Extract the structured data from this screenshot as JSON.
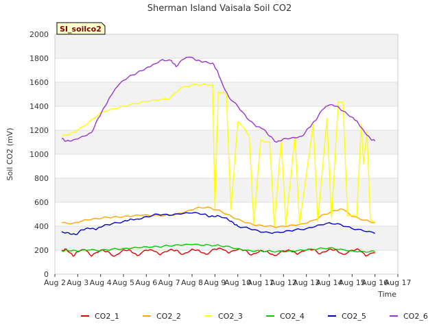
{
  "chart_data": {
    "type": "line",
    "title": "Sherman Island Vaisala Soil CO2",
    "xlabel": "Time",
    "ylabel": "Soil CO2 (mV)",
    "site_label": "SI_soilco2",
    "x_ticks": [
      "Aug 2",
      "Aug 3",
      "Aug 4",
      "Aug 5",
      "Aug 6",
      "Aug 7",
      "Aug 8",
      "Aug 9",
      "Aug 10",
      "Aug 11",
      "Aug 12",
      "Aug 13",
      "Aug 14",
      "Aug 15",
      "Aug 16",
      "Aug 17"
    ],
    "xlim": [
      2,
      17
    ],
    "ylim": [
      0,
      2000
    ],
    "y_ticks": [
      0,
      200,
      400,
      600,
      800,
      1000,
      1200,
      1400,
      1600,
      1800,
      2000
    ],
    "grid": true,
    "legend_position": "bottom",
    "series": [
      {
        "name": "CO2_1",
        "color": "#dd0000",
        "points": [
          [
            2.3,
            200
          ],
          [
            2.5,
            210
          ],
          [
            2.8,
            150
          ],
          [
            3.0,
            185
          ],
          [
            3.3,
            205
          ],
          [
            3.6,
            150
          ],
          [
            4.0,
            200
          ],
          [
            4.3,
            190
          ],
          [
            4.6,
            150
          ],
          [
            5.0,
            205
          ],
          [
            5.3,
            200
          ],
          [
            5.6,
            155
          ],
          [
            6.0,
            200
          ],
          [
            6.3,
            195
          ],
          [
            6.6,
            160
          ],
          [
            7.0,
            200
          ],
          [
            7.3,
            200
          ],
          [
            7.6,
            165
          ],
          [
            8.0,
            210
          ],
          [
            8.3,
            200
          ],
          [
            8.6,
            165
          ],
          [
            9.0,
            210
          ],
          [
            9.3,
            210
          ],
          [
            9.6,
            175
          ],
          [
            10.0,
            205
          ],
          [
            10.3,
            200
          ],
          [
            10.6,
            160
          ],
          [
            11.0,
            200
          ],
          [
            11.3,
            190
          ],
          [
            11.6,
            155
          ],
          [
            12.0,
            195
          ],
          [
            12.3,
            195
          ],
          [
            12.6,
            165
          ],
          [
            13.0,
            200
          ],
          [
            13.3,
            205
          ],
          [
            13.6,
            170
          ],
          [
            14.0,
            210
          ],
          [
            14.3,
            205
          ],
          [
            14.6,
            165
          ],
          [
            15.0,
            200
          ],
          [
            15.3,
            205
          ],
          [
            15.6,
            150
          ],
          [
            16.0,
            180
          ]
        ]
      },
      {
        "name": "CO2_2",
        "color": "#ffa500",
        "points": [
          [
            2.3,
            430
          ],
          [
            2.8,
            425
          ],
          [
            3.3,
            455
          ],
          [
            3.8,
            465
          ],
          [
            4.3,
            475
          ],
          [
            4.8,
            475
          ],
          [
            5.3,
            480
          ],
          [
            5.8,
            490
          ],
          [
            6.3,
            485
          ],
          [
            6.8,
            490
          ],
          [
            7.3,
            500
          ],
          [
            7.8,
            530
          ],
          [
            8.3,
            560
          ],
          [
            8.8,
            555
          ],
          [
            9.3,
            520
          ],
          [
            9.8,
            470
          ],
          [
            10.3,
            430
          ],
          [
            10.8,
            405
          ],
          [
            11.3,
            400
          ],
          [
            11.8,
            395
          ],
          [
            12.3,
            410
          ],
          [
            12.8,
            420
          ],
          [
            13.3,
            450
          ],
          [
            13.8,
            500
          ],
          [
            14.3,
            530
          ],
          [
            14.6,
            540
          ],
          [
            15.0,
            480
          ],
          [
            15.5,
            450
          ],
          [
            16.0,
            430
          ]
        ]
      },
      {
        "name": "CO2_3",
        "color": "#ffff00",
        "points": [
          [
            2.3,
            1150
          ],
          [
            2.6,
            1160
          ],
          [
            3.0,
            1200
          ],
          [
            3.5,
            1270
          ],
          [
            4.0,
            1350
          ],
          [
            4.5,
            1380
          ],
          [
            5.0,
            1400
          ],
          [
            5.5,
            1420
          ],
          [
            6.0,
            1440
          ],
          [
            6.5,
            1450
          ],
          [
            7.0,
            1460
          ],
          [
            7.5,
            1550
          ],
          [
            8.0,
            1580
          ],
          [
            8.5,
            1585
          ],
          [
            8.9,
            1580
          ],
          [
            9.0,
            550
          ],
          [
            9.15,
            1520
          ],
          [
            9.5,
            1500
          ],
          [
            9.7,
            540
          ],
          [
            10.0,
            1270
          ],
          [
            10.2,
            1230
          ],
          [
            10.5,
            1160
          ],
          [
            10.7,
            420
          ],
          [
            11.0,
            1120
          ],
          [
            11.4,
            1100
          ],
          [
            11.6,
            400
          ],
          [
            11.9,
            1120
          ],
          [
            12.1,
            410
          ],
          [
            12.5,
            1150
          ],
          [
            12.7,
            420
          ],
          [
            13.3,
            1250
          ],
          [
            13.5,
            440
          ],
          [
            13.9,
            1300
          ],
          [
            14.1,
            470
          ],
          [
            14.4,
            1440
          ],
          [
            14.6,
            1430
          ],
          [
            14.8,
            490
          ],
          [
            15.2,
            480
          ],
          [
            15.4,
            1250
          ],
          [
            15.5,
            920
          ],
          [
            15.65,
            1190
          ],
          [
            15.8,
            450
          ],
          [
            16.0,
            440
          ]
        ]
      },
      {
        "name": "CO2_4",
        "color": "#00cc00",
        "points": [
          [
            2.3,
            195
          ],
          [
            2.6,
            195
          ],
          [
            3.0,
            190
          ],
          [
            3.5,
            200
          ],
          [
            4.0,
            195
          ],
          [
            4.5,
            210
          ],
          [
            5.0,
            215
          ],
          [
            5.5,
            225
          ],
          [
            6.0,
            230
          ],
          [
            6.5,
            230
          ],
          [
            7.0,
            235
          ],
          [
            7.5,
            240
          ],
          [
            8.0,
            245
          ],
          [
            8.5,
            240
          ],
          [
            9.0,
            240
          ],
          [
            9.5,
            235
          ],
          [
            10.0,
            215
          ],
          [
            10.5,
            200
          ],
          [
            11.0,
            195
          ],
          [
            11.5,
            190
          ],
          [
            12.0,
            185
          ],
          [
            12.5,
            190
          ],
          [
            13.0,
            200
          ],
          [
            13.5,
            210
          ],
          [
            14.0,
            220
          ],
          [
            14.5,
            210
          ],
          [
            15.0,
            195
          ],
          [
            15.5,
            190
          ],
          [
            16.0,
            190
          ]
        ]
      },
      {
        "name": "CO2_5",
        "color": "#0000cc",
        "points": [
          [
            2.3,
            355
          ],
          [
            2.6,
            345
          ],
          [
            2.9,
            330
          ],
          [
            3.2,
            370
          ],
          [
            3.5,
            380
          ],
          [
            3.8,
            370
          ],
          [
            4.1,
            400
          ],
          [
            4.5,
            420
          ],
          [
            5.0,
            440
          ],
          [
            5.3,
            460
          ],
          [
            5.6,
            460
          ],
          [
            6.0,
            480
          ],
          [
            6.5,
            500
          ],
          [
            7.0,
            490
          ],
          [
            7.5,
            500
          ],
          [
            8.0,
            510
          ],
          [
            8.5,
            500
          ],
          [
            8.8,
            480
          ],
          [
            9.1,
            490
          ],
          [
            9.5,
            470
          ],
          [
            9.8,
            430
          ],
          [
            10.0,
            400
          ],
          [
            10.5,
            380
          ],
          [
            11.0,
            350
          ],
          [
            11.5,
            340
          ],
          [
            12.0,
            350
          ],
          [
            12.5,
            370
          ],
          [
            13.0,
            380
          ],
          [
            13.5,
            410
          ],
          [
            14.0,
            430
          ],
          [
            14.5,
            415
          ],
          [
            15.0,
            380
          ],
          [
            15.5,
            360
          ],
          [
            16.0,
            340
          ]
        ]
      },
      {
        "name": "CO2_6",
        "color": "#9933cc",
        "points": [
          [
            2.3,
            1130
          ],
          [
            2.5,
            1110
          ],
          [
            2.8,
            1120
          ],
          [
            3.2,
            1150
          ],
          [
            3.6,
            1180
          ],
          [
            3.9,
            1300
          ],
          [
            4.2,
            1400
          ],
          [
            4.5,
            1500
          ],
          [
            4.8,
            1580
          ],
          [
            5.2,
            1640
          ],
          [
            5.6,
            1680
          ],
          [
            6.0,
            1720
          ],
          [
            6.3,
            1750
          ],
          [
            6.7,
            1790
          ],
          [
            7.1,
            1780
          ],
          [
            7.3,
            1730
          ],
          [
            7.6,
            1790
          ],
          [
            7.9,
            1810
          ],
          [
            8.2,
            1780
          ],
          [
            8.5,
            1770
          ],
          [
            8.9,
            1760
          ],
          [
            9.1,
            1700
          ],
          [
            9.3,
            1600
          ],
          [
            9.6,
            1480
          ],
          [
            10.0,
            1400
          ],
          [
            10.4,
            1300
          ],
          [
            10.8,
            1230
          ],
          [
            11.1,
            1210
          ],
          [
            11.4,
            1150
          ],
          [
            11.7,
            1100
          ],
          [
            12.0,
            1130
          ],
          [
            12.4,
            1140
          ],
          [
            12.8,
            1150
          ],
          [
            13.1,
            1220
          ],
          [
            13.4,
            1280
          ],
          [
            13.7,
            1370
          ],
          [
            14.0,
            1410
          ],
          [
            14.3,
            1400
          ],
          [
            14.6,
            1360
          ],
          [
            15.0,
            1310
          ],
          [
            15.2,
            1280
          ],
          [
            15.5,
            1200
          ],
          [
            15.8,
            1130
          ],
          [
            16.0,
            1110
          ]
        ]
      }
    ]
  }
}
